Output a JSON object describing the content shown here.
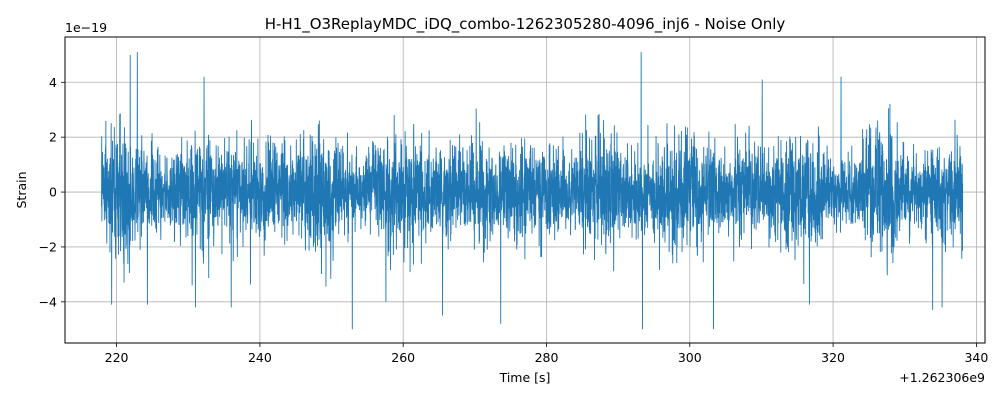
{
  "chart_data": {
    "type": "line",
    "title": "H-H1_O3ReplayMDC_iDQ_combo-1262305280-4096_inj6 - Noise Only",
    "xlabel": "Time [s]",
    "ylabel": "Strain",
    "x_offset_label": "+1.262306e9",
    "y_scale_label": "1e−19",
    "xlim": [
      212.8,
      341.2
    ],
    "ylim": [
      -5.5,
      5.65
    ],
    "x_ticks": [
      220,
      240,
      260,
      280,
      300,
      320,
      340
    ],
    "x_tick_labels": [
      "220",
      "240",
      "260",
      "280",
      "300",
      "320",
      "340"
    ],
    "y_ticks": [
      -4,
      -2,
      0,
      2,
      4
    ],
    "y_tick_labels": [
      "−4",
      "−2",
      "0",
      "2",
      "4"
    ],
    "grid": true,
    "series": [
      {
        "color": "#1f77b4",
        "x_range": [
          217.9,
          338.1
        ],
        "envelope_points": [
          {
            "x": 218.5,
            "y": 2.6
          },
          {
            "x": 219.3,
            "y": -4.1
          },
          {
            "x": 221.9,
            "y": 5.0
          },
          {
            "x": 222.9,
            "y": 5.1
          },
          {
            "x": 224.3,
            "y": -4.1
          },
          {
            "x": 231.0,
            "y": -4.2
          },
          {
            "x": 232.2,
            "y": 4.2
          },
          {
            "x": 236.0,
            "y": -4.2
          },
          {
            "x": 252.9,
            "y": -5.0
          },
          {
            "x": 257.6,
            "y": -4.0
          },
          {
            "x": 265.5,
            "y": -4.5
          },
          {
            "x": 273.6,
            "y": -4.8
          },
          {
            "x": 293.2,
            "y": 5.1
          },
          {
            "x": 293.4,
            "y": -5.0
          },
          {
            "x": 303.3,
            "y": -5.0
          },
          {
            "x": 310.1,
            "y": 4.1
          },
          {
            "x": 316.7,
            "y": -4.1
          },
          {
            "x": 321.1,
            "y": 4.2
          },
          {
            "x": 333.9,
            "y": -4.3
          },
          {
            "x": 335.2,
            "y": -4.2
          }
        ]
      }
    ]
  }
}
